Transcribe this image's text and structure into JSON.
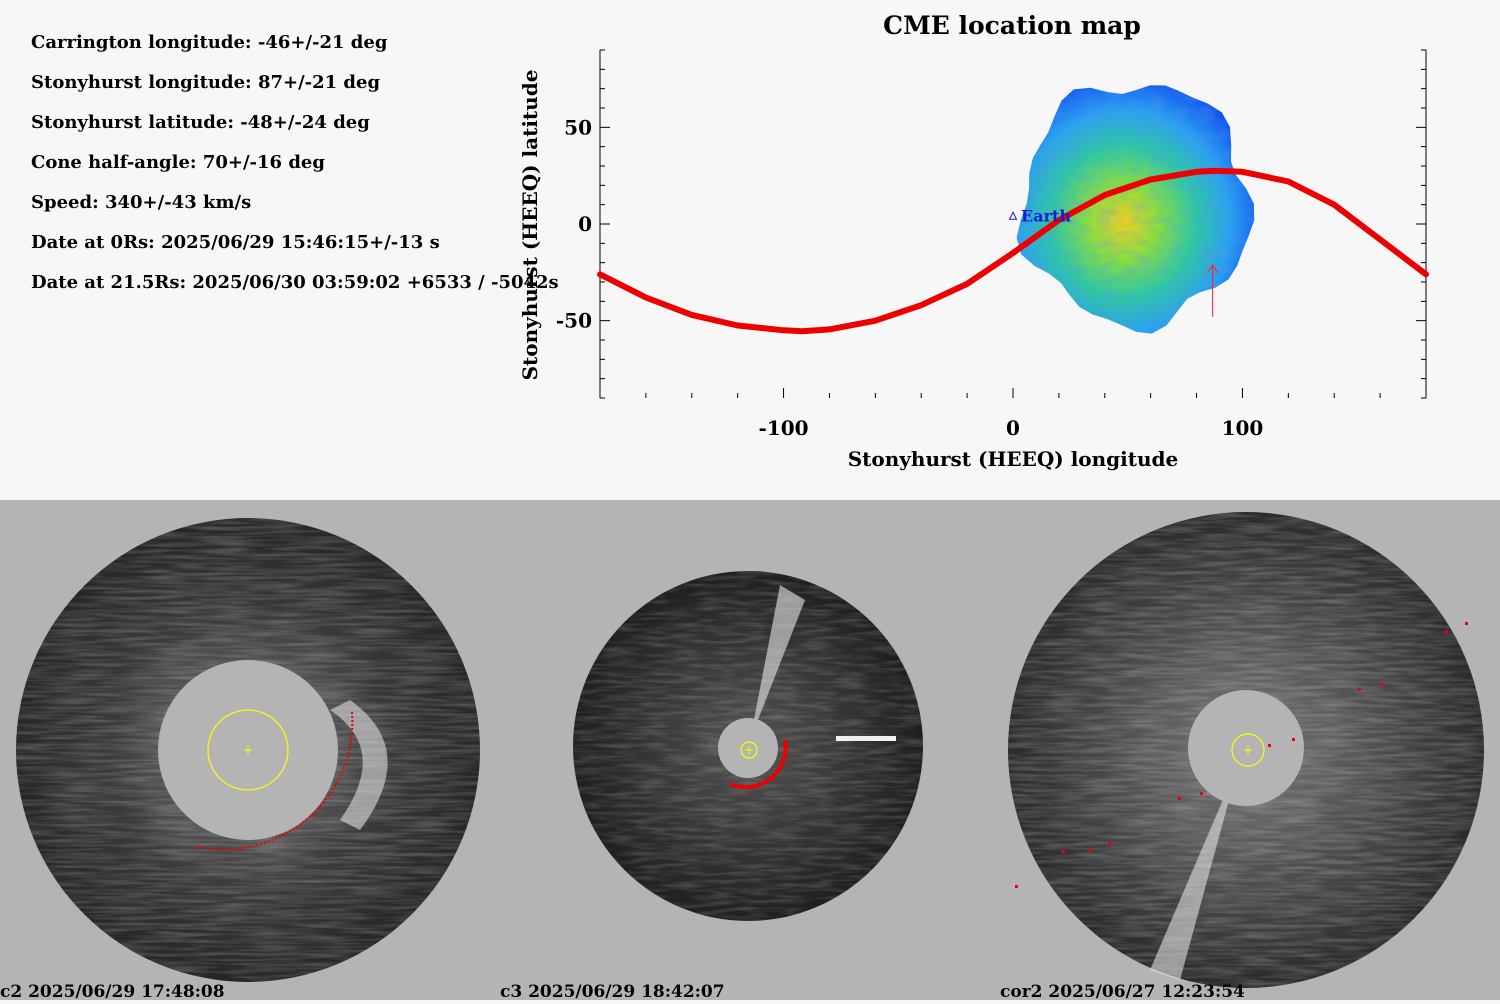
{
  "info": {
    "lines": [
      "Carrington longitude: -46+/-21 deg",
      "Stonyhurst longitude: 87+/-21 deg",
      "Stonyhurst latitude: -48+/-24 deg",
      "Cone half-angle: 70+/-16 deg",
      "Speed: 340+/-43 km/s",
      "Date at 0Rs: 2025/06/29 15:46:15+/-13 s",
      "Date at 21.5Rs: 2025/06/30 03:59:02 +6533 / -5042s"
    ]
  },
  "colors": {
    "curve": "#ee0000",
    "earth": "#1b1bd0",
    "marker": "#ff2020",
    "panel_bg": "#b4b4b4",
    "sun_circle": "#ffff00"
  },
  "chart_data": {
    "type": "scatter",
    "title": "CME location map",
    "xlabel": "Stonyhurst (HEEQ) longitude",
    "ylabel": "Stonyhurst (HEEQ) latitude",
    "xlim": [
      -180,
      180
    ],
    "ylim": [
      -90,
      90
    ],
    "xticks": [
      -100,
      0,
      100
    ],
    "yticks": [
      50,
      0,
      -50
    ],
    "earth": {
      "label": "Earth",
      "lon": 0,
      "lat": 4
    },
    "cme_direction": {
      "lon": 87,
      "lat": -48
    },
    "curve": {
      "lon": [
        -180,
        -160,
        -140,
        -120,
        -100,
        -92,
        -80,
        -60,
        -40,
        -20,
        0,
        20,
        40,
        60,
        80,
        88,
        100,
        120,
        140,
        160,
        180
      ],
      "lat": [
        -26,
        -38,
        -47,
        -52.5,
        -55,
        -55.5,
        -54.5,
        -50,
        -42,
        -31,
        -15,
        2,
        15,
        23,
        27,
        27.5,
        27,
        22,
        10,
        -8,
        -26
      ]
    },
    "density_region": {
      "lon_range": [
        4,
        103
      ],
      "lat_range": [
        -52,
        73
      ]
    }
  },
  "panels": [
    {
      "caption": "c2 2025/06/29 17:48:08"
    },
    {
      "caption": "c3 2025/06/29 18:42:07"
    },
    {
      "caption": "cor2 2025/06/27 12:23:54"
    }
  ]
}
